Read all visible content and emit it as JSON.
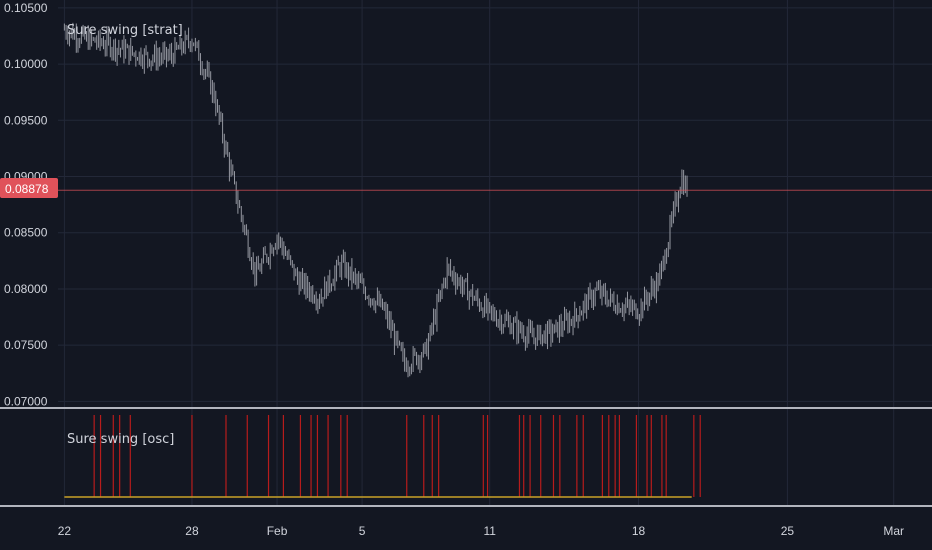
{
  "chart_data": [
    {
      "type": "candlestick",
      "title": "Sure swing [strat]",
      "price_ticks": [
        "0.10500",
        "0.10000",
        "0.09500",
        "0.09000",
        "0.08500",
        "0.08000",
        "0.07500",
        "0.07000"
      ],
      "ylim": [
        0.0695,
        0.1057
      ],
      "last_price": "0.08878",
      "last_price_value": 0.08878,
      "x_ticks": [
        "22",
        "28",
        "Feb",
        "5",
        "11",
        "18",
        "25",
        "Mar"
      ],
      "x_tick_days": [
        0,
        6,
        10,
        14,
        20,
        27,
        34,
        39
      ],
      "xlim_days": [
        -0.3,
        40.8
      ],
      "path_days": [
        0,
        1,
        2,
        3,
        4,
        5,
        6,
        7,
        8,
        9,
        10,
        11,
        12,
        13,
        14,
        15,
        16,
        17,
        18,
        19,
        20,
        21,
        22,
        23,
        24,
        25,
        26,
        27,
        28,
        29,
        29.3
      ],
      "path_close": [
        0.1031,
        0.1022,
        0.1018,
        0.1011,
        0.1006,
        0.1007,
        0.1023,
        0.0975,
        0.0889,
        0.0812,
        0.0847,
        0.0807,
        0.0792,
        0.0822,
        0.0801,
        0.0782,
        0.0733,
        0.0745,
        0.0818,
        0.0797,
        0.0778,
        0.0768,
        0.0757,
        0.0762,
        0.0775,
        0.0798,
        0.0786,
        0.0781,
        0.081,
        0.0898,
        0.0888
      ]
    },
    {
      "type": "signal-bars",
      "title": "Sure swing [osc]",
      "signal_days": [
        1.4,
        1.7,
        2.3,
        2.6,
        3.1,
        6.0,
        7.6,
        8.6,
        9.6,
        10.3,
        11.1,
        11.6,
        11.9,
        12.4,
        13.0,
        13.3,
        16.1,
        16.9,
        17.3,
        17.6,
        19.7,
        19.9,
        21.4,
        21.6,
        21.9,
        22.4,
        23.0,
        23.3,
        24.1,
        24.4,
        25.3,
        25.6,
        25.9,
        26.1,
        26.9,
        27.4,
        27.6,
        28.1,
        28.3,
        29.6,
        29.9
      ],
      "baseline_xlim_days": [
        0,
        29.5
      ]
    }
  ],
  "colors": {
    "background": "#131722",
    "grid": "#232838",
    "text": "#d1d4dc",
    "candle": "#9598a1",
    "price_line": "#e0525a",
    "signal": "#b71c1c",
    "baseline": "#c9a227",
    "pane_border": "#b2b5be"
  }
}
